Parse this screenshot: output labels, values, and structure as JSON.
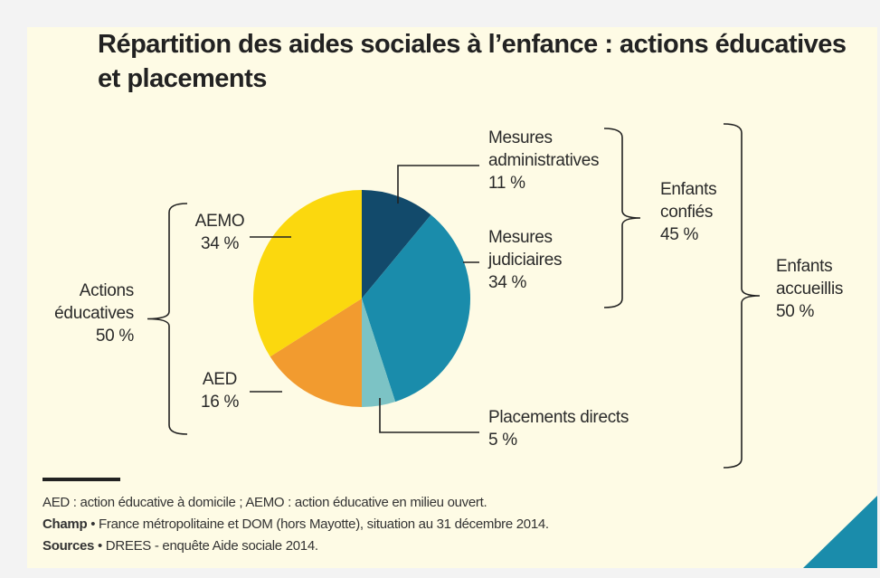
{
  "chart_data": {
    "type": "pie",
    "title": "Répartition des aides sociales à l’enfance : actions éducatives\net placements",
    "categories": [
      "Mesures\nadministratives",
      "Mesures\njudiciaires",
      "Placements directs",
      "AED",
      "AEMO"
    ],
    "values": [
      11,
      34,
      5,
      16,
      34
    ],
    "value_labels": [
      "11 %",
      "34 %",
      "5 %",
      "16 %",
      "34 %"
    ],
    "colors": [
      "#124a6b",
      "#1a8cab",
      "#7cc3c5",
      "#f29b2f",
      "#fbd80e"
    ],
    "groups": [
      {
        "label": "Actions\néducatives",
        "value": 50,
        "value_label": "50 %"
      },
      {
        "label": "Enfants\nconfiés",
        "value": 45,
        "value_label": "45 %"
      },
      {
        "label": "Enfants\naccueillis",
        "value": 50,
        "value_label": "50 %"
      }
    ],
    "notes": [
      {
        "text": "AED : action éducative à domicile ; AEMO : action éducative en milieu ouvert."
      },
      {
        "label": "Champ",
        "text": " • France métropolitaine et DOM (hors Mayotte), situation au 31 décembre 2014."
      },
      {
        "label": "Sources",
        "text": " • DREES - enquête Aide sociale 2014."
      }
    ]
  }
}
